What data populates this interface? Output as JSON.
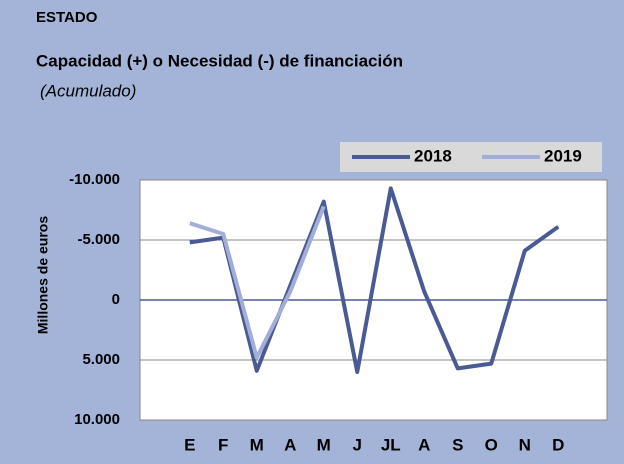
{
  "chart_data": {
    "type": "line",
    "title": "ESTADO",
    "subtitle": "Capacidad (+) o Necesidad (-) de financiación",
    "note": "(Acumulado)",
    "y_label": "Millones de euros",
    "categories": [
      "E",
      "F",
      "M",
      "A",
      "M",
      "J",
      "JL",
      "A",
      "S",
      "O",
      "N",
      "D"
    ],
    "series": [
      {
        "name": "2018",
        "color": "#4a5a94",
        "values": [
          -4800,
          -5200,
          5900,
          -1200,
          -8200,
          6000,
          -9300,
          -700,
          5700,
          5300,
          -4100,
          -6100
        ]
      },
      {
        "name": "2019",
        "color": "#a3aed8",
        "values": [
          -6400,
          -5500,
          4800,
          -700,
          -7800,
          null,
          null,
          null,
          null,
          null,
          null,
          null
        ]
      }
    ],
    "ylim": [
      -10000,
      10000
    ],
    "inverted_y": true,
    "yticks": [
      {
        "value": -10000,
        "label": "-10.000"
      },
      {
        "value": -5000,
        "label": "-5.000"
      },
      0,
      {
        "value": 5000,
        "label": "5.000"
      },
      {
        "value": 10000,
        "label": "10.000"
      }
    ],
    "grid": true,
    "legend": "top-right"
  }
}
